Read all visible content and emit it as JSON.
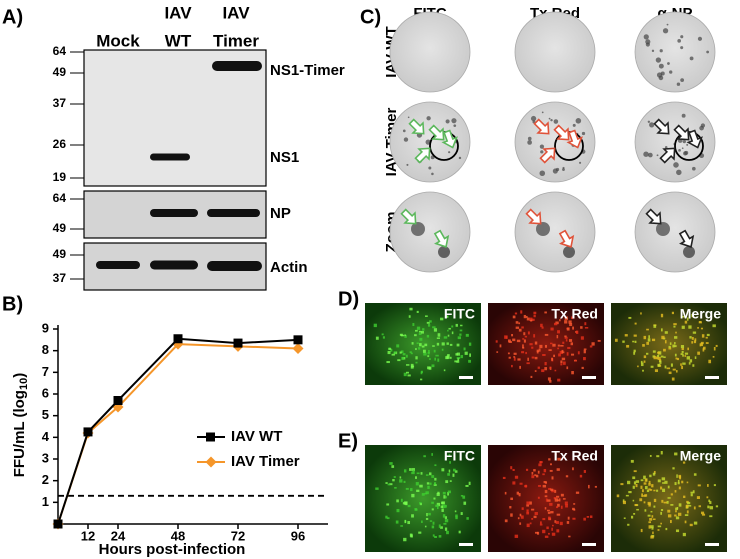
{
  "panel_a": {
    "letter": "A)",
    "lanes": [
      [
        "Mock"
      ],
      [
        "IAV",
        "WT"
      ],
      [
        "IAV",
        "Timer"
      ]
    ],
    "blots": [
      {
        "markers": [
          64,
          49,
          37,
          26,
          19
        ],
        "labels": [
          "NS1-Timer",
          "NS1"
        ]
      },
      {
        "markers": [
          64,
          49
        ],
        "labels": [
          "NP"
        ]
      },
      {
        "markers": [
          49,
          37
        ],
        "labels": [
          "Actin"
        ]
      }
    ]
  },
  "chart_data": {
    "type": "line",
    "letter": "B)",
    "ylabel": [
      "FFU/mL (log",
      "10",
      ")"
    ],
    "xlabel": "Hours post-infection",
    "x": [
      0,
      12,
      24,
      48,
      72,
      96
    ],
    "xlim": [
      0,
      108
    ],
    "xticks": [
      12,
      24,
      48,
      72,
      96
    ],
    "ylim": [
      0,
      9
    ],
    "yticks": [
      1,
      2,
      3,
      4,
      5,
      6,
      7,
      8,
      9
    ],
    "threshold": 1.3,
    "series": [
      {
        "name": "IAV WT",
        "color": "#000000",
        "values": [
          0,
          4.25,
          5.7,
          8.55,
          8.35,
          8.5
        ]
      },
      {
        "name": "IAV Timer",
        "color": "#f5962a",
        "values": [
          0,
          4.2,
          5.4,
          8.3,
          8.2,
          8.1
        ]
      }
    ]
  },
  "panel_c": {
    "letter": "C)",
    "columns": [
      "FITC",
      "Tx Red",
      "α-NP"
    ],
    "rows": [
      "IAV WT",
      "IAV Timer",
      "Zoom"
    ]
  },
  "panel_d": {
    "letter": "D)",
    "images": [
      "FITC",
      "Tx Red",
      "Merge"
    ]
  },
  "panel_e": {
    "letter": "E)",
    "images": [
      "FITC",
      "Tx Red",
      "Merge"
    ]
  }
}
